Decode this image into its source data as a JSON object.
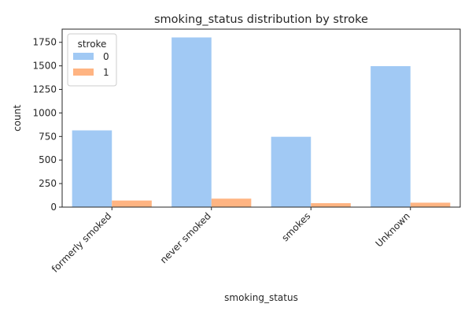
{
  "chart_data": {
    "type": "bar",
    "title": "smoking_status distribution by stroke",
    "xlabel": "smoking_status",
    "ylabel": "count",
    "categories": [
      "formerly smoked",
      "never smoked",
      "smokes",
      "Unknown"
    ],
    "series": [
      {
        "name": "0",
        "values": [
          815,
          1802,
          747,
          1497
        ],
        "color": "#a1c9f4"
      },
      {
        "name": "1",
        "values": [
          70,
          90,
          42,
          47
        ],
        "color": "#ffb482"
      }
    ],
    "ylim": [
      0,
      1890
    ],
    "yticks": [
      0,
      250,
      500,
      750,
      1000,
      1250,
      1500,
      1750
    ],
    "legend": {
      "title": "stroke",
      "placement": "top-left"
    },
    "grid": false
  }
}
